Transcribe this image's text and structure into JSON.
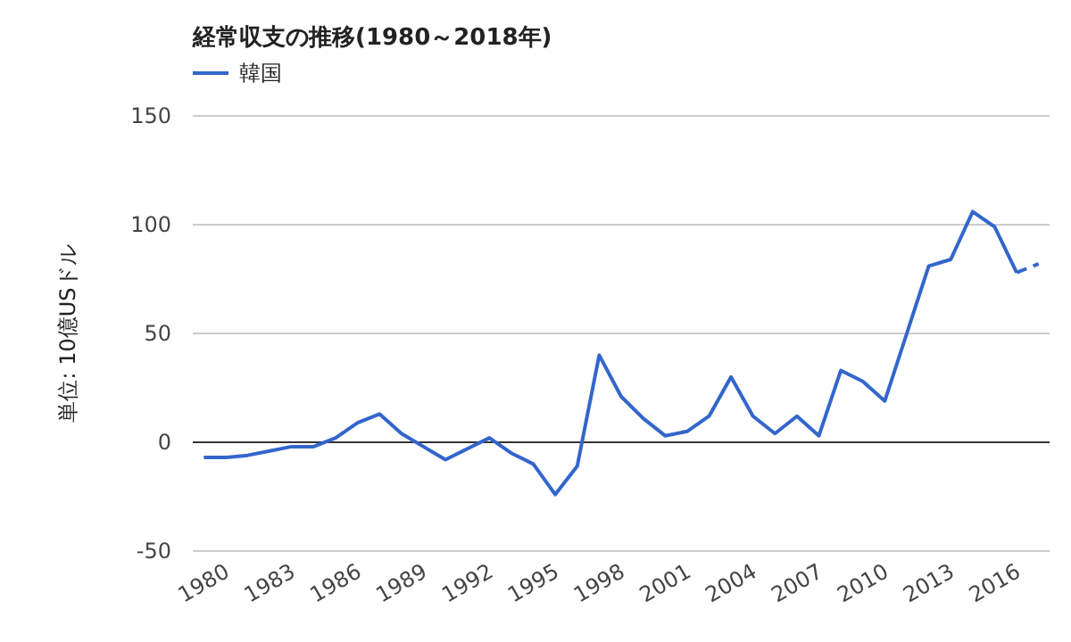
{
  "chart_data": {
    "type": "line",
    "title": "経常収支の推移(1980～2018年)",
    "ylabel": "単位: 10億USドル",
    "x": [
      1980,
      1981,
      1982,
      1983,
      1984,
      1985,
      1986,
      1987,
      1988,
      1989,
      1990,
      1991,
      1992,
      1993,
      1994,
      1995,
      1996,
      1997,
      1998,
      1999,
      2000,
      2001,
      2002,
      2003,
      2004,
      2005,
      2006,
      2007,
      2008,
      2009,
      2010,
      2011,
      2012,
      2013,
      2014,
      2015,
      2016,
      2017,
      2018
    ],
    "series": [
      {
        "name": "韓国",
        "color": "#3366cc",
        "line_style": "solid",
        "values": [
          -7,
          -7,
          -6,
          -4,
          -2,
          -2,
          2,
          9,
          13,
          4,
          -2,
          -8,
          -3,
          2,
          -5,
          -10,
          -24,
          -11,
          40,
          21,
          11,
          3,
          5,
          12,
          30,
          12,
          4,
          12,
          3,
          33,
          28,
          19,
          50,
          81,
          84,
          106,
          99,
          78,
          null
        ]
      },
      {
        "color": "#3366cc",
        "line_style": "dashed",
        "values": [
          null,
          null,
          null,
          null,
          null,
          null,
          null,
          null,
          null,
          null,
          null,
          null,
          null,
          null,
          null,
          null,
          null,
          null,
          null,
          null,
          null,
          null,
          null,
          null,
          null,
          null,
          null,
          null,
          null,
          null,
          null,
          null,
          null,
          null,
          null,
          null,
          null,
          78,
          82
        ]
      }
    ],
    "xlim": [
      1979.5,
      2018.5
    ],
    "xticks": [
      1980,
      1983,
      1986,
      1989,
      1992,
      1995,
      1998,
      2001,
      2004,
      2007,
      2010,
      2013,
      2016
    ],
    "ylim": [
      -50,
      150
    ],
    "yticks": [
      -50,
      0,
      50,
      100,
      150
    ],
    "grid": "y",
    "legend": "top left"
  }
}
